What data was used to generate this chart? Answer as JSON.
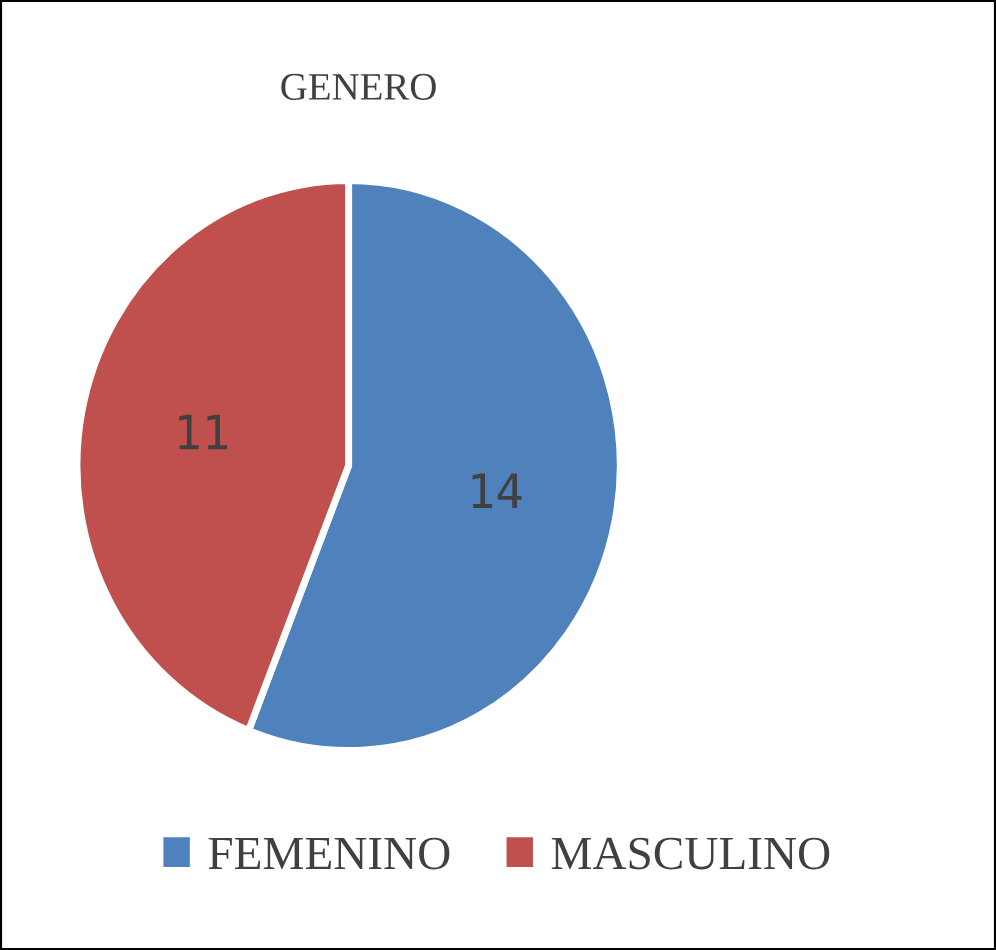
{
  "chart_data": {
    "type": "pie",
    "title": "GENERO",
    "categories": [
      "FEMENINO",
      "MASCULINO"
    ],
    "values": [
      14,
      11
    ],
    "colors": [
      "#4f81bd",
      "#c0504d"
    ],
    "data_labels": true,
    "legend": "bottom"
  }
}
